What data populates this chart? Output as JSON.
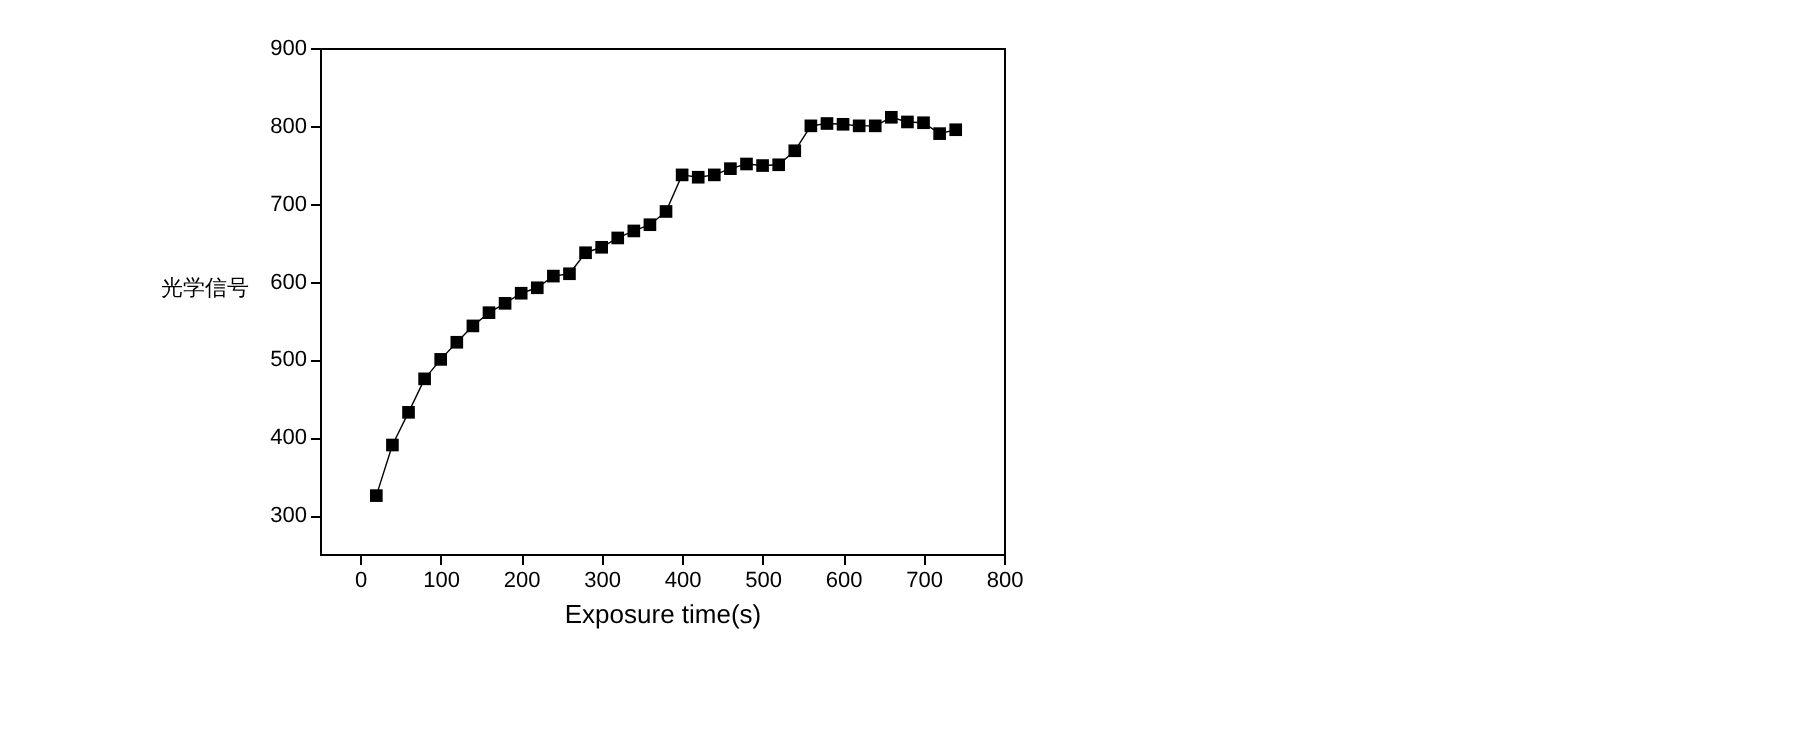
{
  "chart_data": {
    "type": "line",
    "xlabel": "Exposure time(s)",
    "ylabel": "光学信号",
    "x": [
      20,
      40,
      60,
      80,
      100,
      120,
      140,
      160,
      180,
      200,
      220,
      240,
      260,
      280,
      300,
      320,
      340,
      360,
      380,
      400,
      420,
      440,
      460,
      480,
      500,
      520,
      540,
      560,
      580,
      600,
      620,
      640,
      660,
      680,
      700,
      720,
      740
    ],
    "series": [
      {
        "color": "#000000",
        "values": [
          325,
          390,
          432,
          475,
          500,
          522,
          543,
          560,
          572,
          585,
          592,
          607,
          610,
          637,
          644,
          656,
          665,
          673,
          690,
          737,
          734,
          737,
          745,
          751,
          749,
          750,
          768,
          800,
          803,
          802,
          800,
          800,
          811,
          805,
          804,
          790,
          795
        ]
      }
    ],
    "xlim": [
      -50,
      800
    ],
    "xticks": [
      0,
      100,
      200,
      300,
      400,
      500,
      600,
      700,
      800
    ],
    "ylim": [
      250,
      900
    ],
    "yticks": [
      300,
      400,
      500,
      600,
      700,
      800,
      900
    ],
    "marker": "square",
    "grid": false,
    "legend": false
  }
}
